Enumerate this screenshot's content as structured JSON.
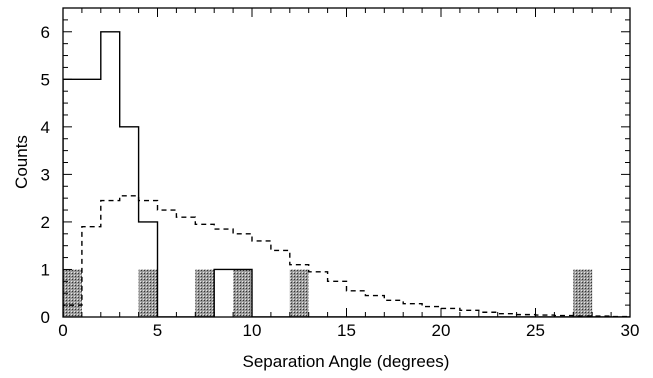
{
  "chart_data": {
    "type": "histogram",
    "xlabel": "Separation Angle (degrees)",
    "ylabel": "Counts",
    "xlim": [
      0,
      30
    ],
    "ylim": [
      0,
      6.5
    ],
    "x_ticks": [
      0,
      5,
      10,
      15,
      20,
      25,
      30
    ],
    "y_ticks": [
      0,
      1,
      2,
      3,
      4,
      5,
      6
    ],
    "grid": false,
    "bin_edges": [
      0,
      1,
      2,
      3,
      4,
      5,
      6,
      7,
      8,
      9,
      10,
      11,
      12,
      13,
      14,
      15,
      16,
      17,
      18,
      19,
      20,
      21,
      22,
      23,
      24,
      25,
      26,
      27,
      28,
      29,
      30
    ],
    "series": [
      {
        "style": "solid-step",
        "values": [
          5,
          5,
          6,
          4,
          2,
          0,
          0,
          0,
          1,
          1,
          0,
          0,
          0,
          0,
          0,
          0,
          0,
          0,
          0,
          0,
          0,
          0,
          0,
          0,
          0,
          0,
          0,
          0,
          0,
          0
        ]
      },
      {
        "style": "dashed-step",
        "values": [
          0.25,
          1.9,
          2.45,
          2.55,
          2.45,
          2.25,
          2.1,
          1.95,
          1.85,
          1.75,
          1.6,
          1.4,
          1.1,
          0.95,
          0.75,
          0.55,
          0.45,
          0.35,
          0.28,
          0.22,
          0.18,
          0.14,
          0.1,
          0.07,
          0.05,
          0.04,
          0.03,
          0.02,
          0.02,
          0.01
        ]
      },
      {
        "style": "hatched-bars",
        "values": [
          1,
          0,
          0,
          0,
          1,
          0,
          0,
          1,
          0,
          1,
          0,
          0,
          1,
          0,
          0,
          0,
          0,
          0,
          0,
          0,
          0,
          0,
          0,
          0,
          0,
          0,
          0,
          1,
          0,
          0
        ]
      }
    ]
  }
}
